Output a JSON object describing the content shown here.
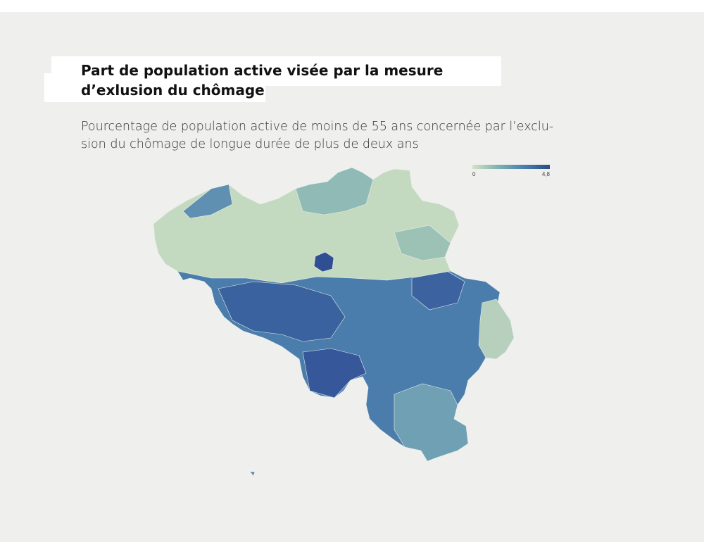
{
  "header": {
    "title_lines": [
      "Part de population active visée par la mesure",
      "d’exlusion du chômage"
    ],
    "subtitle_lines": [
      "Pourcentage de population active de moins de 55 ans concernée par l’exclu-",
      "sion du chômage de longue durée de plus de deux ans"
    ]
  },
  "legend": {
    "ticks": [
      0,
      {
        "value": 4.8,
        "label": "4,8"
      }
    ],
    "colors": [
      "#d3e2c4",
      "#7fb0b0",
      "#4a7fad",
      "#2a4a86"
    ]
  }
}
